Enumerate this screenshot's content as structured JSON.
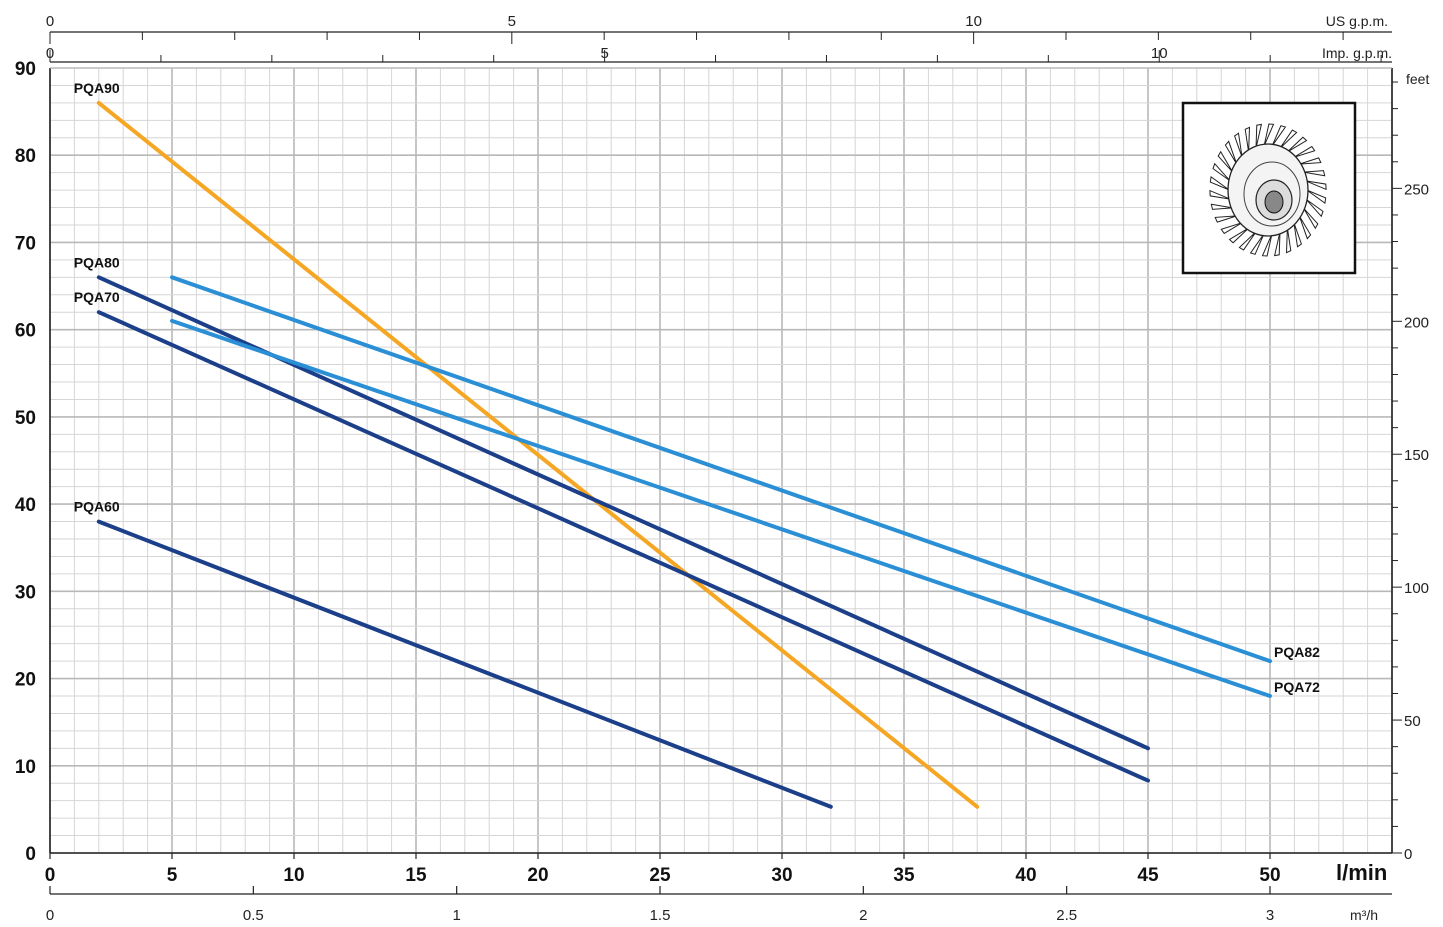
{
  "chart_data": {
    "type": "line",
    "xlabel": "l/min",
    "ylabel": "",
    "xlim": [
      0,
      55
    ],
    "ylim": [
      0,
      90
    ],
    "grid": true,
    "x_ticks": [
      "0",
      "5",
      "10",
      "15",
      "20",
      "25",
      "30",
      "35",
      "40",
      "45",
      "50"
    ],
    "y_ticks": [
      "0",
      "10",
      "20",
      "30",
      "40",
      "50",
      "60",
      "70",
      "80",
      "90"
    ],
    "secondary_axes": {
      "right": {
        "label": "feet",
        "ticks": [
          "0",
          "50",
          "100",
          "150",
          "200",
          "250"
        ]
      },
      "bottom": {
        "label": "m³/h",
        "ticks": [
          "0",
          "0.5",
          "1",
          "1.5",
          "2",
          "2.5",
          "3"
        ]
      },
      "top_us": {
        "label": "US g.p.m.",
        "ticks": [
          "0",
          "5",
          "10"
        ]
      },
      "top_imp": {
        "label": "Imp. g.p.m.",
        "ticks": [
          "0",
          "5",
          "10"
        ]
      }
    },
    "series": [
      {
        "name": "PQA90",
        "color": "#f5a623",
        "x": [
          2,
          38
        ],
        "y": [
          86,
          5.3
        ]
      },
      {
        "name": "PQA80",
        "color": "#1c3f8a",
        "x": [
          2,
          45
        ],
        "y": [
          66,
          12
        ]
      },
      {
        "name": "PQA70",
        "color": "#1c3f8a",
        "x": [
          2,
          45
        ],
        "y": [
          62,
          8.3
        ]
      },
      {
        "name": "PQA60",
        "color": "#1c3f8a",
        "x": [
          2,
          32
        ],
        "y": [
          38,
          5.3
        ]
      },
      {
        "name": "PQA82",
        "color": "#2b8fd6",
        "x": [
          5,
          50
        ],
        "y": [
          66,
          22
        ]
      },
      {
        "name": "PQA72",
        "color": "#2b8fd6",
        "x": [
          5,
          50
        ],
        "y": [
          61,
          18
        ]
      }
    ]
  }
}
